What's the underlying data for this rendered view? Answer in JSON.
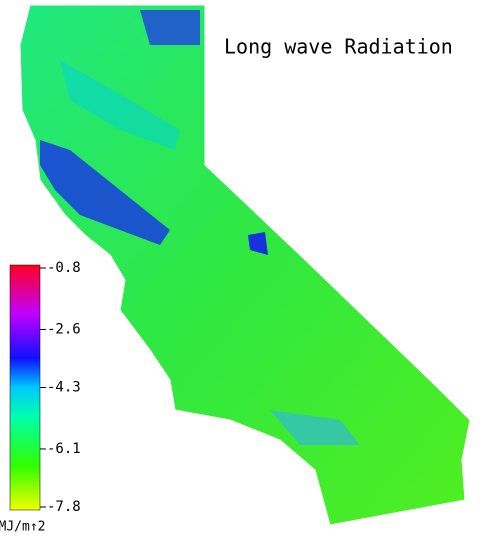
{
  "title": "Long wave Radiation",
  "colorbar": {
    "lim": [
      -7.8,
      -0.8
    ],
    "ticks": [
      -0.8,
      -2.6,
      -4.3,
      -6.1,
      -7.8
    ],
    "unit": "MJ/m↑2"
  }
}
